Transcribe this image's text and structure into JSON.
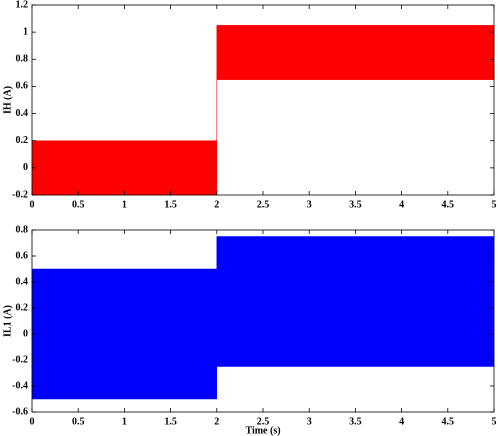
{
  "chart_data": [
    {
      "type": "band",
      "ylabel": "IH (A)",
      "x": [
        0,
        2,
        2,
        5
      ],
      "upper": [
        0.2,
        0.2,
        1.05,
        1.05
      ],
      "lower": [
        -0.2,
        -0.2,
        0.65,
        0.65
      ],
      "color": "#ff0000",
      "xlim": [
        0,
        5
      ],
      "xticks": [
        0,
        0.5,
        1,
        1.5,
        2,
        2.5,
        3,
        3.5,
        4,
        4.5,
        5
      ],
      "ylim": [
        -0.2,
        1.2
      ],
      "yticks": [
        -0.2,
        0,
        0.2,
        0.4,
        0.6,
        0.8,
        1,
        1.2
      ]
    },
    {
      "type": "band",
      "ylabel": "IL1 (A)",
      "xlabel": "Time (s)",
      "x": [
        0,
        2,
        2,
        5
      ],
      "upper": [
        0.5,
        0.5,
        0.75,
        0.75
      ],
      "lower": [
        -0.5,
        -0.5,
        -0.25,
        -0.25
      ],
      "color": "#0000ff",
      "xlim": [
        0,
        5
      ],
      "xticks": [
        0,
        0.5,
        1,
        1.5,
        2,
        2.5,
        3,
        3.5,
        4,
        4.5,
        5
      ],
      "ylim": [
        -0.6,
        0.8
      ],
      "yticks": [
        -0.6,
        -0.4,
        -0.2,
        0,
        0.2,
        0.4,
        0.6,
        0.8
      ]
    }
  ]
}
